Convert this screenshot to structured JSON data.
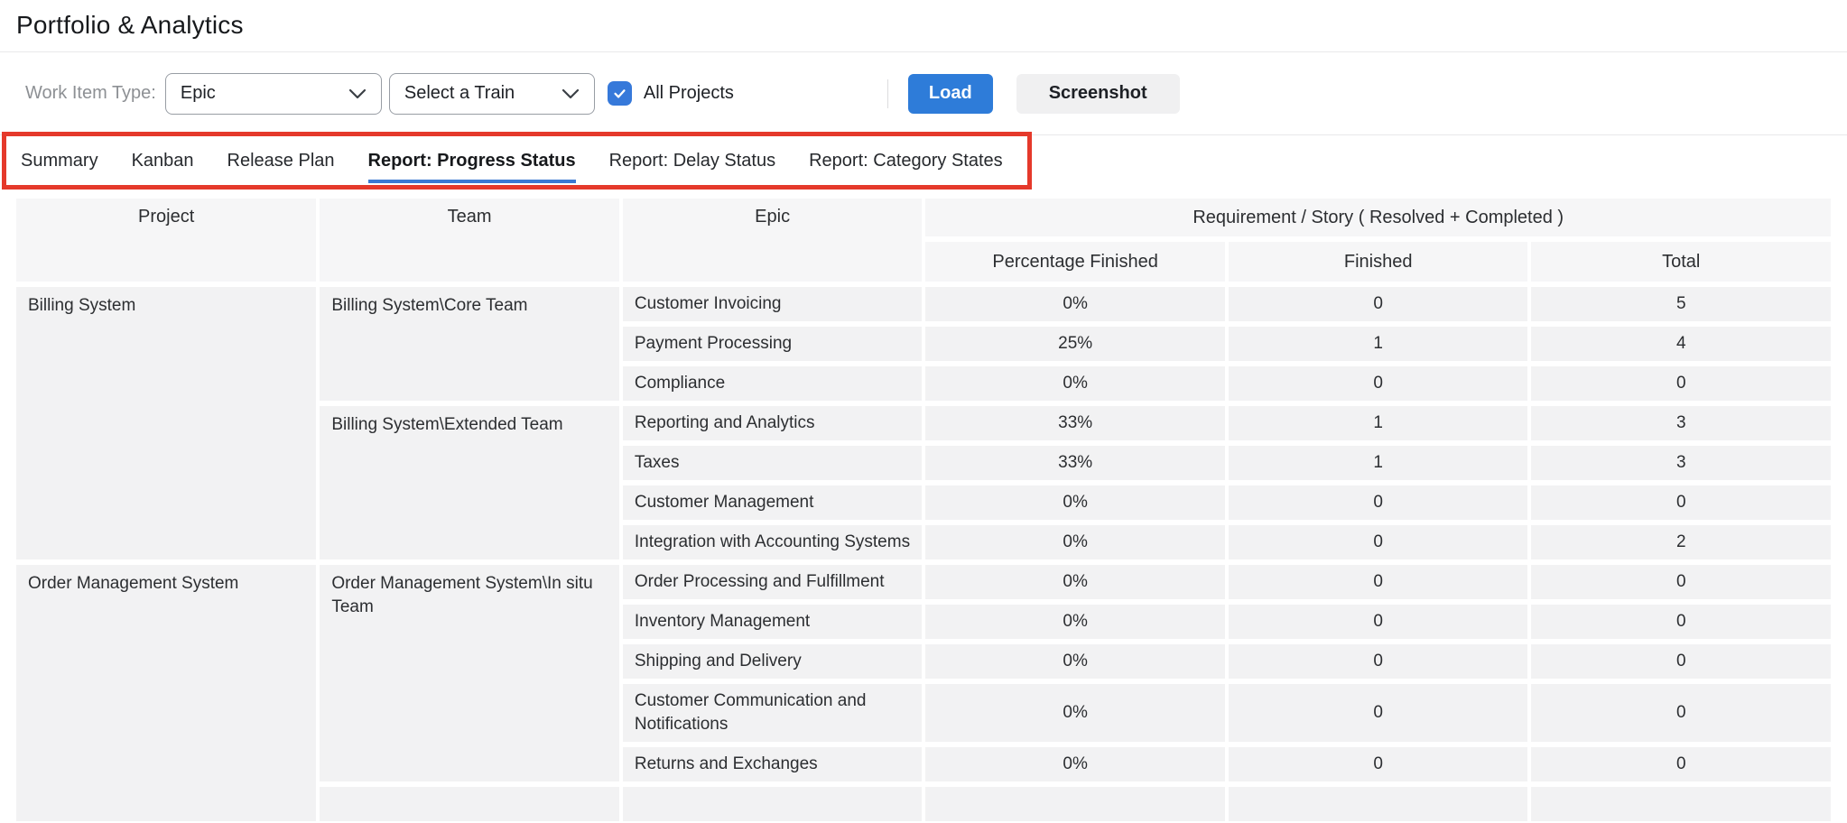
{
  "page": {
    "title": "Portfolio & Analytics"
  },
  "toolbar": {
    "work_item_type_label": "Work Item Type:",
    "work_item_type_value": "Epic",
    "train_select_value": "Select a Train",
    "all_projects_label": "All Projects",
    "all_projects_checked": true,
    "load_label": "Load",
    "screenshot_label": "Screenshot"
  },
  "tabs": [
    {
      "label": "Summary",
      "active": false
    },
    {
      "label": "Kanban",
      "active": false
    },
    {
      "label": "Release Plan",
      "active": false
    },
    {
      "label": "Report: Progress Status",
      "active": true
    },
    {
      "label": "Report: Delay Status",
      "active": false
    },
    {
      "label": "Report: Category States",
      "active": false
    }
  ],
  "table": {
    "column_headers": [
      "Project",
      "Team",
      "Epic"
    ],
    "group_header": "Requirement / Story ( Resolved + Completed )",
    "sub_headers": [
      "Percentage Finished",
      "Finished",
      "Total"
    ],
    "projects": [
      {
        "name": "Billing System",
        "teams": [
          {
            "name": "Billing System\\Core Team",
            "epics": [
              {
                "name": "Customer Invoicing",
                "percentage": "0%",
                "finished": "0",
                "total": "5"
              },
              {
                "name": "Payment Processing",
                "percentage": "25%",
                "finished": "1",
                "total": "4"
              },
              {
                "name": "Compliance",
                "percentage": "0%",
                "finished": "0",
                "total": "0"
              }
            ]
          },
          {
            "name": "Billing System\\Extended Team",
            "epics": [
              {
                "name": "Reporting and Analytics",
                "percentage": "33%",
                "finished": "1",
                "total": "3"
              },
              {
                "name": "Taxes",
                "percentage": "33%",
                "finished": "1",
                "total": "3"
              },
              {
                "name": "Customer Management",
                "percentage": "0%",
                "finished": "0",
                "total": "0"
              },
              {
                "name": "Integration with Accounting Systems",
                "percentage": "0%",
                "finished": "0",
                "total": "2"
              }
            ]
          }
        ]
      },
      {
        "name": "Order Management System",
        "teams": [
          {
            "name": "Order Management System\\In situ Team",
            "epics": [
              {
                "name": "Order Processing and Fulfillment",
                "percentage": "0%",
                "finished": "0",
                "total": "0"
              },
              {
                "name": "Inventory Management",
                "percentage": "0%",
                "finished": "0",
                "total": "0"
              },
              {
                "name": "Shipping and Delivery",
                "percentage": "0%",
                "finished": "0",
                "total": "0"
              },
              {
                "name": "Customer Communication and Notifications",
                "percentage": "0%",
                "finished": "0",
                "total": "0"
              },
              {
                "name": "Returns and Exchanges",
                "percentage": "0%",
                "finished": "0",
                "total": "0"
              }
            ]
          },
          {
            "name": "",
            "epics": [
              {
                "name": "",
                "percentage": "",
                "finished": "",
                "total": ""
              }
            ]
          }
        ]
      }
    ]
  },
  "colors": {
    "accent_blue": "#2e7cd9",
    "tab_underline_blue": "#3b79d3",
    "checkbox_blue": "#3679da",
    "annotation_red": "#e5392b",
    "header_cell_bg": "#f6f6f7",
    "body_cell_bg": "#f2f2f3"
  }
}
